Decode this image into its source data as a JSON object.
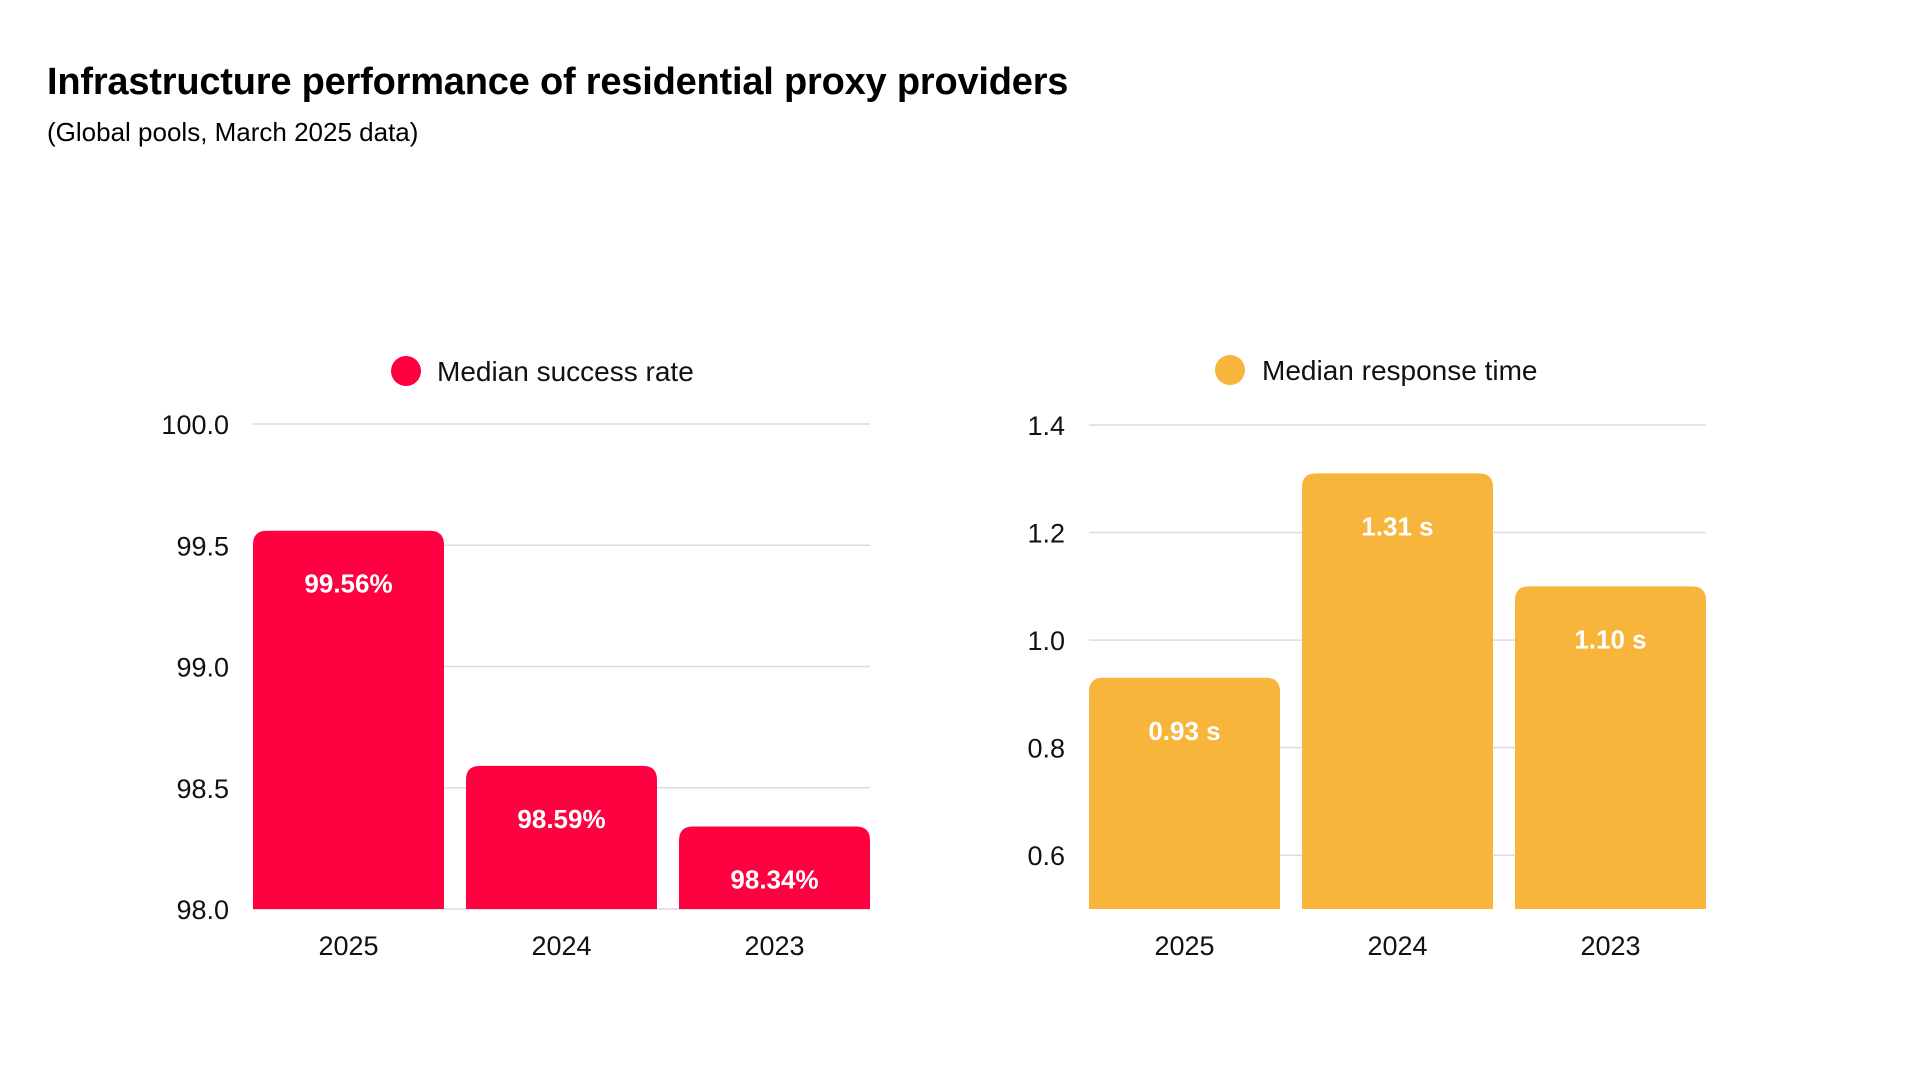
{
  "header": {
    "title": "Infrastructure performance of residential proxy providers",
    "subtitle": "(Global pools, March 2025 data)"
  },
  "chart_data": [
    {
      "type": "bar",
      "title": "",
      "legend": [
        {
          "label": "Median success rate",
          "color": "#FF0040"
        }
      ],
      "legend_position": "top-center",
      "categories": [
        "2025",
        "2024",
        "2023"
      ],
      "values": [
        99.56,
        98.59,
        98.34
      ],
      "value_labels": [
        "99.56%",
        "98.59%",
        "98.34%"
      ],
      "unit": "%",
      "xlabel": "",
      "ylabel": "",
      "ylim": [
        98.0,
        100.0
      ],
      "yticks": [
        98.0,
        98.5,
        99.0,
        99.5,
        100.0
      ],
      "ytick_labels": [
        "98.0",
        "98.5",
        "99.0",
        "99.5",
        "100.0"
      ],
      "grid": true,
      "color": "#FF0040"
    },
    {
      "type": "bar",
      "title": "",
      "legend": [
        {
          "label": "Median response time",
          "color": "#F7B53B"
        }
      ],
      "legend_position": "top-center",
      "categories": [
        "2025",
        "2024",
        "2023"
      ],
      "values": [
        0.93,
        1.31,
        1.1
      ],
      "value_labels": [
        "0.93 s",
        "1.31 s",
        "1.10 s"
      ],
      "unit": "s",
      "xlabel": "",
      "ylabel": "",
      "ylim": [
        0.5,
        1.4
      ],
      "yticks": [
        0.6,
        0.8,
        1.0,
        1.2,
        1.4
      ],
      "ytick_labels": [
        "0.6",
        "0.8",
        "1.0",
        "1.2",
        "1.4"
      ],
      "grid": true,
      "color": "#F7B53B"
    }
  ]
}
